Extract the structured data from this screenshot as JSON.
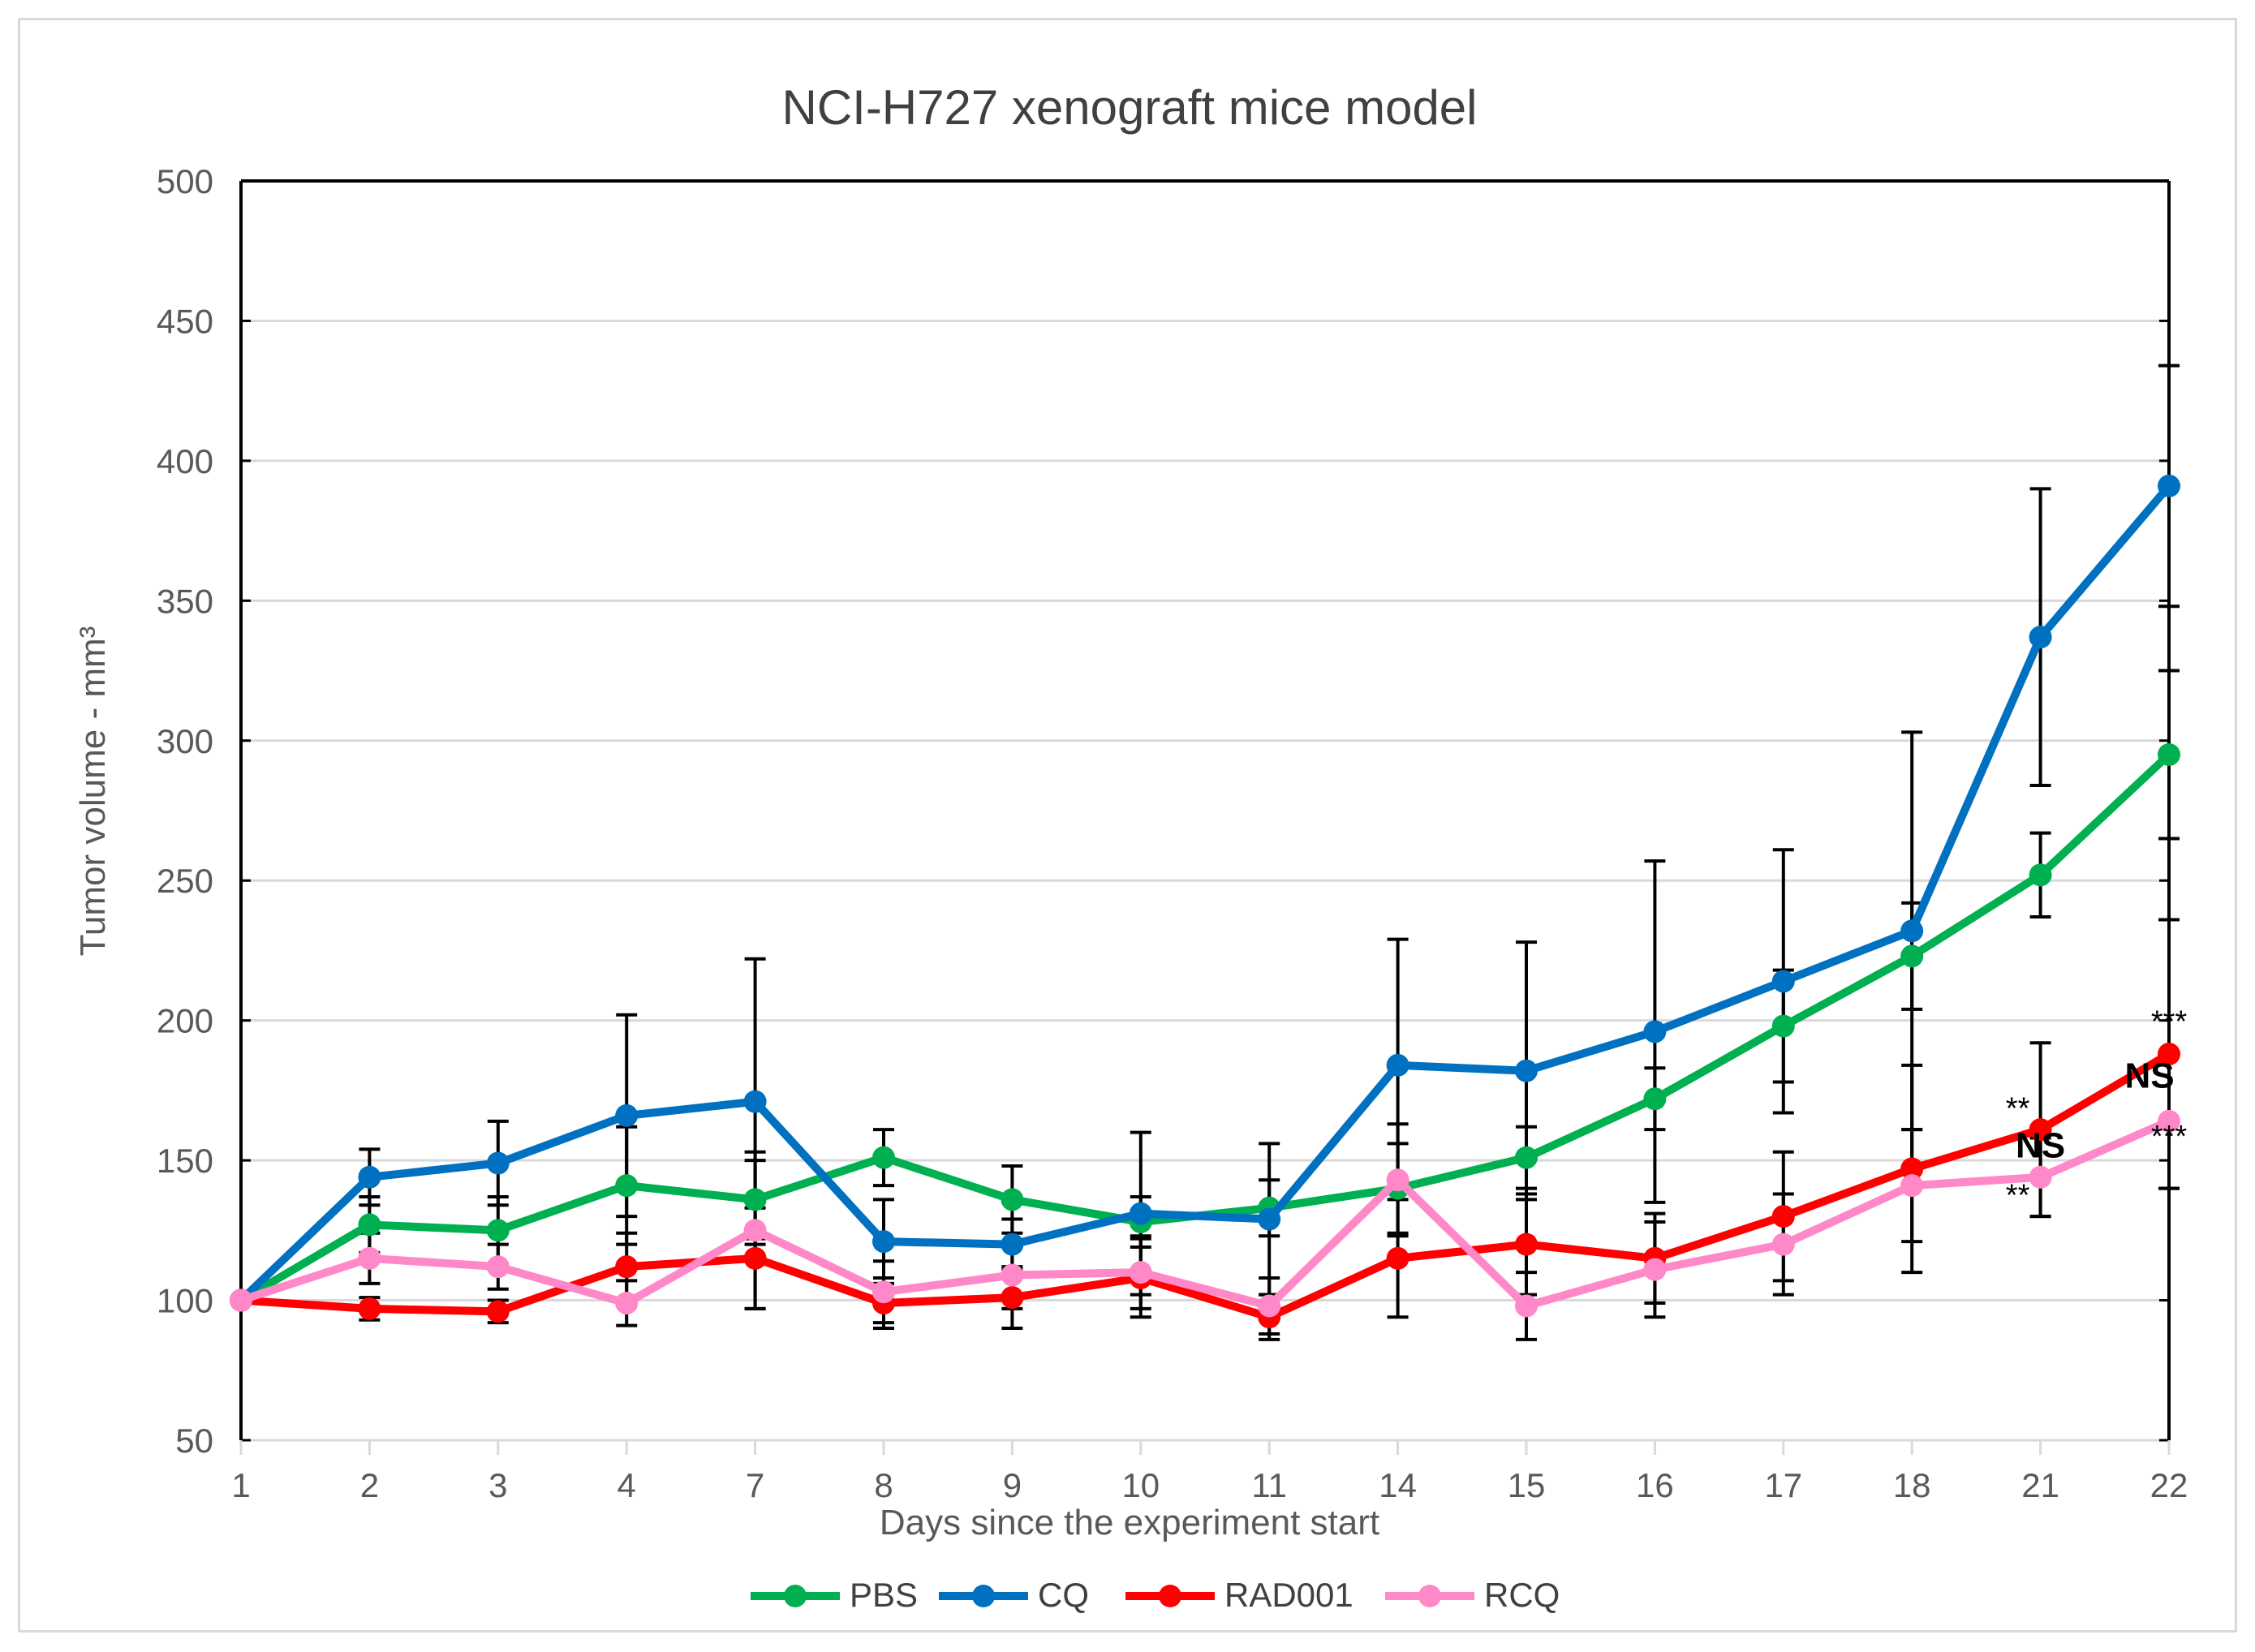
{
  "chart_data": {
    "type": "line",
    "title": "NCI-H727 xenograft mice model",
    "xlabel": "Days since the experiment start",
    "ylabel": "Tumor volume - mm³",
    "ylim": [
      50,
      500
    ],
    "ytick_step": 50,
    "yticks": [
      "50",
      "100",
      "150",
      "200",
      "250",
      "300",
      "350",
      "400",
      "450",
      "500"
    ],
    "categories": [
      "1",
      "2",
      "3",
      "4",
      "7",
      "8",
      "9",
      "10",
      "11",
      "14",
      "15",
      "16",
      "17",
      "18",
      "21",
      "22"
    ],
    "grid": true,
    "legend_position": "bottom",
    "series": [
      {
        "name": "PBS",
        "color": "#00b050",
        "values": [
          100,
          127,
          125,
          141,
          136,
          151,
          136,
          128,
          133,
          140,
          151,
          172,
          198,
          223,
          252,
          295
        ],
        "err": [
          0,
          10,
          12,
          21,
          14,
          10,
          12,
          9,
          10,
          16,
          11,
          11,
          20,
          19,
          15,
          30
        ]
      },
      {
        "name": "CQ",
        "color": "#0070c0",
        "values": [
          100,
          144,
          149,
          166,
          171,
          121,
          120,
          131,
          129,
          184,
          182,
          196,
          214,
          232,
          337,
          391
        ],
        "err": [
          0,
          10,
          15,
          36,
          51,
          15,
          9,
          29,
          27,
          45,
          46,
          61,
          47,
          71,
          53,
          43
        ]
      },
      {
        "name": "RAD001",
        "color": "#ff0000",
        "values": [
          100,
          97,
          96,
          112,
          115,
          99,
          101,
          108,
          94,
          115,
          120,
          115,
          130,
          147,
          161,
          188
        ],
        "err": [
          0,
          4,
          4,
          12,
          18,
          9,
          11,
          14,
          8,
          21,
          18,
          16,
          23,
          37,
          31,
          48
        ]
      },
      {
        "name": "RCQ",
        "color": "#ff88c8",
        "values": [
          100,
          115,
          112,
          99,
          125,
          103,
          109,
          110,
          98,
          143,
          98,
          111,
          120,
          141,
          144,
          164
        ],
        "err": [
          0,
          9,
          8,
          8,
          28,
          11,
          12,
          13,
          10,
          20,
          12,
          17,
          18,
          20,
          14,
          24
        ]
      }
    ],
    "annotations": [
      {
        "text": "**",
        "category": "21",
        "value": 165,
        "bold": false
      },
      {
        "text": "NS",
        "category": "21",
        "value": 151,
        "bold": true
      },
      {
        "text": "**",
        "category": "21",
        "value": 134,
        "bold": false
      },
      {
        "text": "***",
        "category": "22",
        "value": 196,
        "bold": false
      },
      {
        "text": "NS",
        "category": "22",
        "value": 176,
        "bold": true
      },
      {
        "text": "***",
        "category": "22",
        "value": 155,
        "bold": false
      }
    ]
  }
}
